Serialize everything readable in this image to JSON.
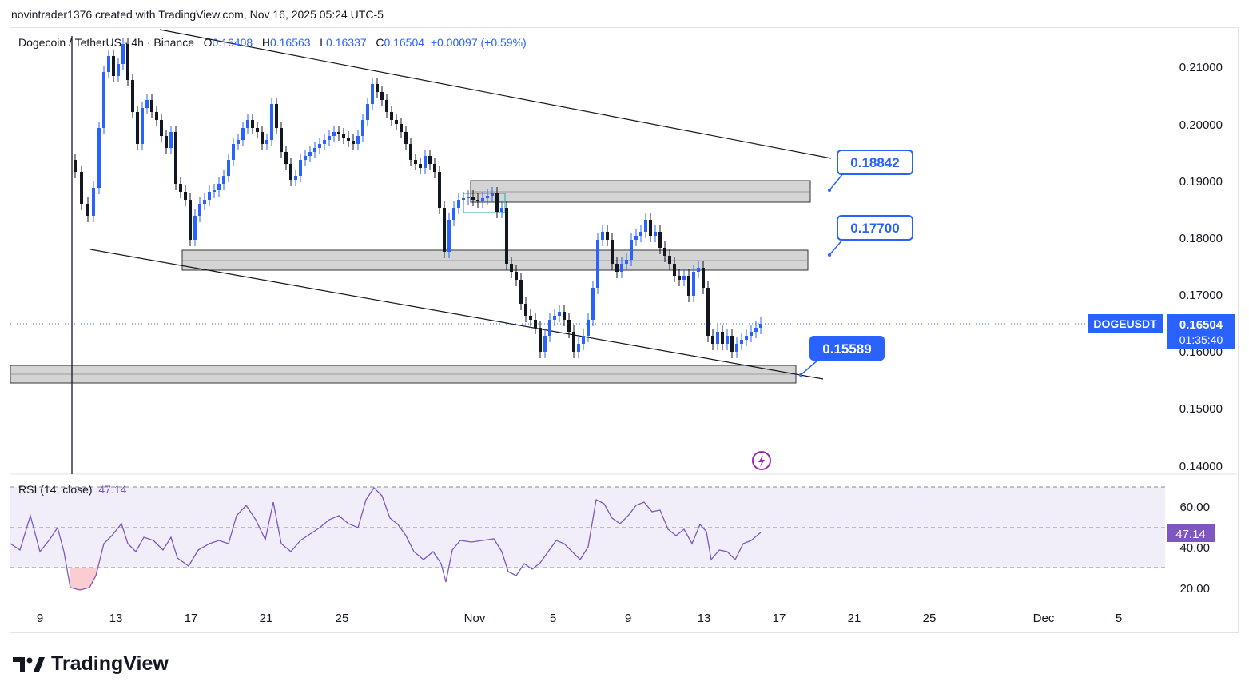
{
  "header": {
    "text": "novintrader1376 created with TradingView.com, Nov 16, 2025 05:24 UTC-5"
  },
  "legend": {
    "symbol": "Dogecoin / TetherUS · 4h · Binance",
    "o_label": "O",
    "o_value": "0.16408",
    "h_label": "H",
    "h_value": "0.16563",
    "l_label": "L",
    "l_value": "0.16337",
    "c_label": "C",
    "c_value": "0.16504",
    "change": "+0.00097 (+0.59%)"
  },
  "price_axis": {
    "labels": [
      "0.21000",
      "0.20000",
      "0.19000",
      "0.18000",
      "0.17000",
      "0.16000",
      "0.15000",
      "0.14000"
    ]
  },
  "ticker_badge": {
    "symbol": "DOGEUSDT",
    "price": "0.16504",
    "countdown": "01:35:40",
    "color": "#2962ff"
  },
  "callouts": [
    {
      "label": "0.18842"
    },
    {
      "label": "0.17700"
    },
    {
      "label": "0.15589"
    }
  ],
  "rsi": {
    "title": "RSI (14, close)",
    "value": "47.14",
    "axis_labels": [
      "60.00",
      "40.00",
      "20.00"
    ],
    "color": "#7e57c2"
  },
  "time_axis": {
    "labels": [
      "9",
      "13",
      "17",
      "21",
      "25",
      "Nov",
      "5",
      "9",
      "13",
      "17",
      "21",
      "25",
      "Dec",
      "5"
    ]
  },
  "colors": {
    "up": "#2962ff",
    "down": "#131722",
    "accent": "#2962ff"
  },
  "icons": {
    "replay": "lightning-icon"
  },
  "brand": {
    "name": "TradingView"
  }
}
